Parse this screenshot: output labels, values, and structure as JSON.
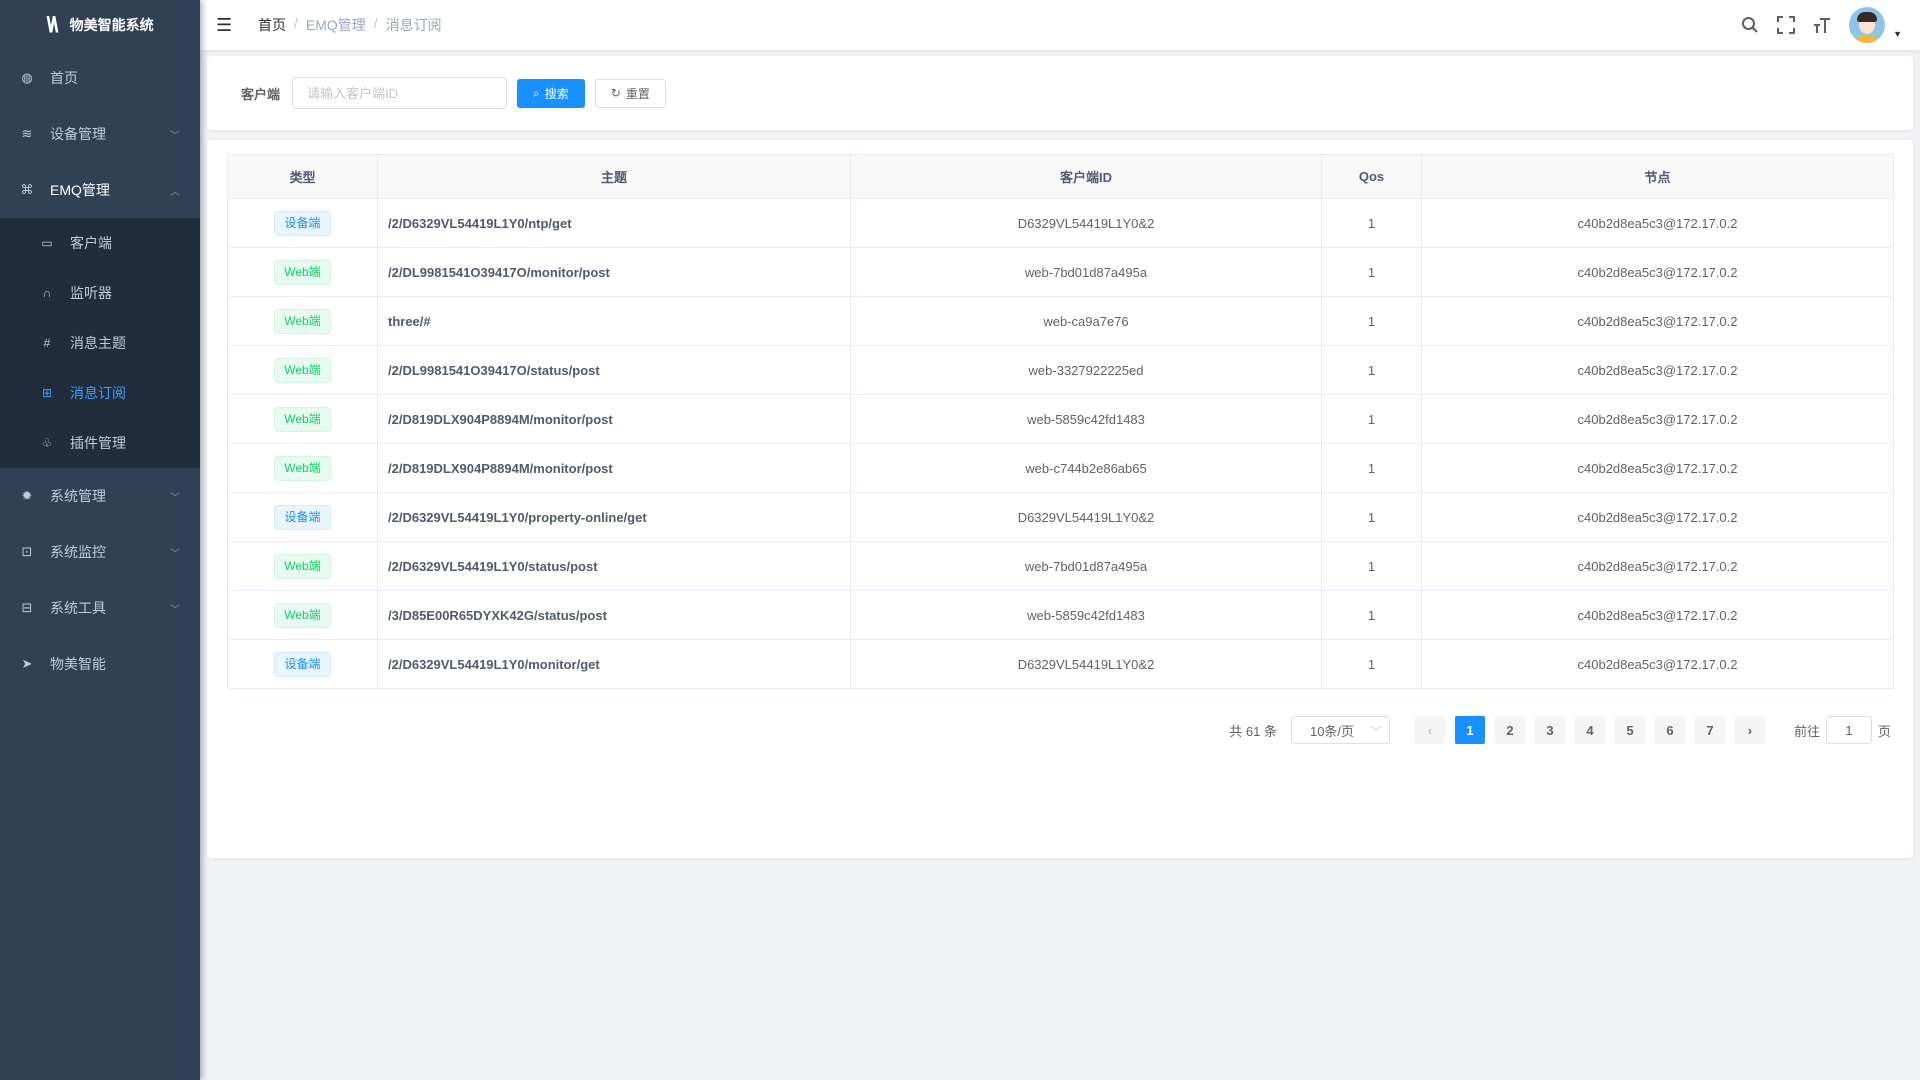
{
  "app": {
    "title": "物美智能系统",
    "logo_text": "WA"
  },
  "sidebar": {
    "items": [
      {
        "label": "首页",
        "icon": "dashboard-icon"
      },
      {
        "label": "设备管理",
        "icon": "layers-icon",
        "expandable": true
      },
      {
        "label": "EMQ管理",
        "icon": "network-icon",
        "expandable": true,
        "open": true,
        "children": [
          {
            "label": "客户端",
            "icon": "monitor-icon"
          },
          {
            "label": "监听器",
            "icon": "headphones-icon"
          },
          {
            "label": "消息主题",
            "icon": "topic-icon"
          },
          {
            "label": "消息订阅",
            "icon": "subscribe-icon",
            "active": true
          },
          {
            "label": "插件管理",
            "icon": "puzzle-icon"
          }
        ]
      },
      {
        "label": "系统管理",
        "icon": "gear-icon",
        "expandable": true
      },
      {
        "label": "系统监控",
        "icon": "chart-monitor-icon",
        "expandable": true
      },
      {
        "label": "系统工具",
        "icon": "toolbox-icon",
        "expandable": true
      },
      {
        "label": "物美智能",
        "icon": "paper-plane-icon"
      }
    ]
  },
  "header": {
    "breadcrumb": [
      "首页",
      "EMQ管理",
      "消息订阅"
    ],
    "separator": "/"
  },
  "search": {
    "label": "客户端",
    "placeholder": "请输入客户端ID",
    "value": "",
    "search_label": "搜索",
    "reset_label": "重置"
  },
  "table": {
    "columns": [
      "类型",
      "主题",
      "客户端ID",
      "Qos",
      "节点"
    ],
    "rows": [
      {
        "type": "设备端",
        "kind": "dev",
        "topic": "/2/D6329VL54419L1Y0/ntp/get",
        "client": "D6329VL54419L1Y0&2",
        "qos": "1",
        "node": "c40b2d8ea5c3@172.17.0.2"
      },
      {
        "type": "Web端",
        "kind": "web",
        "topic": "/2/DL9981541O39417O/monitor/post",
        "client": "web-7bd01d87a495a",
        "qos": "1",
        "node": "c40b2d8ea5c3@172.17.0.2"
      },
      {
        "type": "Web端",
        "kind": "web",
        "topic": "three/#",
        "client": "web-ca9a7e76",
        "qos": "1",
        "node": "c40b2d8ea5c3@172.17.0.2"
      },
      {
        "type": "Web端",
        "kind": "web",
        "topic": "/2/DL9981541O39417O/status/post",
        "client": "web-3327922225ed",
        "qos": "1",
        "node": "c40b2d8ea5c3@172.17.0.2"
      },
      {
        "type": "Web端",
        "kind": "web",
        "topic": "/2/D819DLX904P8894M/monitor/post",
        "client": "web-5859c42fd1483",
        "qos": "1",
        "node": "c40b2d8ea5c3@172.17.0.2"
      },
      {
        "type": "Web端",
        "kind": "web",
        "topic": "/2/D819DLX904P8894M/monitor/post",
        "client": "web-c744b2e86ab65",
        "qos": "1",
        "node": "c40b2d8ea5c3@172.17.0.2"
      },
      {
        "type": "设备端",
        "kind": "dev",
        "topic": "/2/D6329VL54419L1Y0/property-online/get",
        "client": "D6329VL54419L1Y0&2",
        "qos": "1",
        "node": "c40b2d8ea5c3@172.17.0.2"
      },
      {
        "type": "Web端",
        "kind": "web",
        "topic": "/2/D6329VL54419L1Y0/status/post",
        "client": "web-7bd01d87a495a",
        "qos": "1",
        "node": "c40b2d8ea5c3@172.17.0.2"
      },
      {
        "type": "Web端",
        "kind": "web",
        "topic": "/3/D85E00R65DYXK42G/status/post",
        "client": "web-5859c42fd1483",
        "qos": "1",
        "node": "c40b2d8ea5c3@172.17.0.2"
      },
      {
        "type": "设备端",
        "kind": "dev",
        "topic": "/2/D6329VL54419L1Y0/monitor/get",
        "client": "D6329VL54419L1Y0&2",
        "qos": "1",
        "node": "c40b2d8ea5c3@172.17.0.2"
      }
    ]
  },
  "pagination": {
    "total_text": "共 61 条",
    "page_size": "10条/页",
    "pages": [
      "1",
      "2",
      "3",
      "4",
      "5",
      "6",
      "7"
    ],
    "current": "1",
    "goto_label": "前往",
    "goto_value": "1",
    "page_suffix": "页"
  },
  "colors": {
    "primary": "#1890ff",
    "sidebar_bg": "#304156",
    "submenu_bg": "#1f2d3d",
    "web_tag": "#13ce66"
  }
}
